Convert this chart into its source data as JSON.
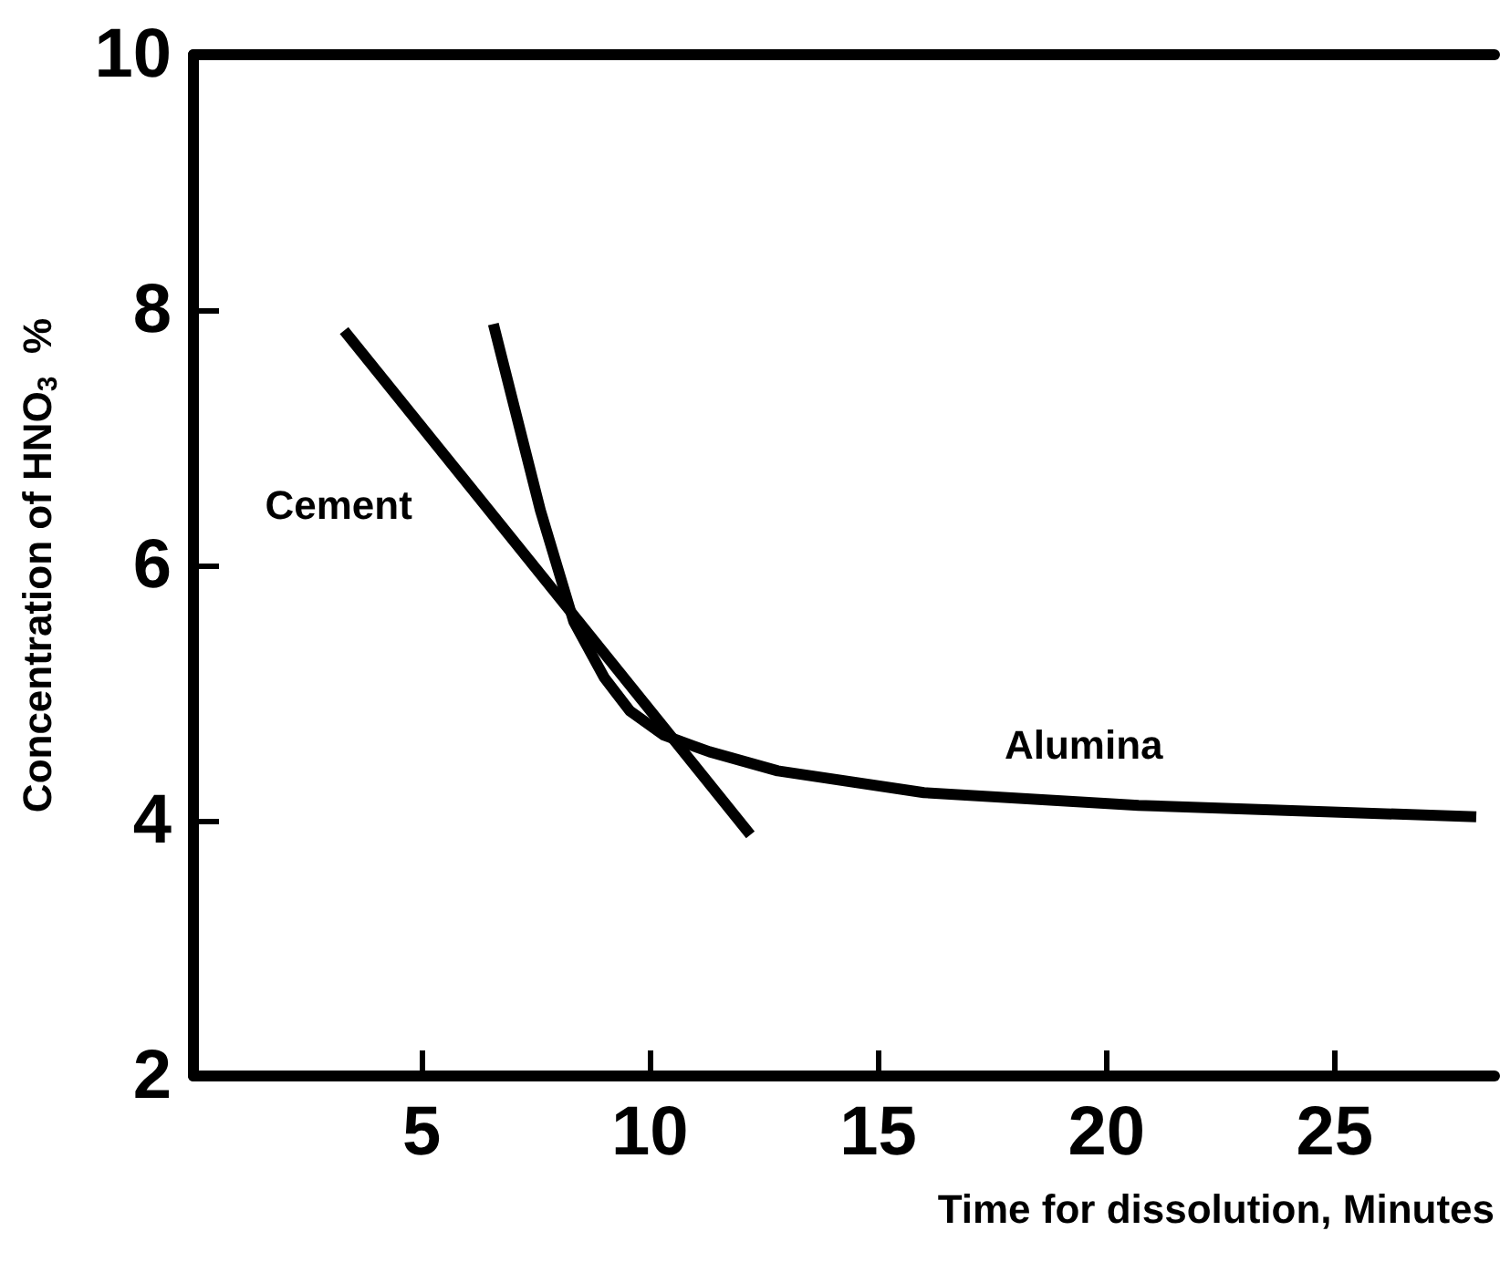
{
  "chart_data": {
    "type": "line",
    "xlabel": "Time for dissolution, Minutes",
    "ylabel": "Concentration of HNO$_{3}$  %",
    "xlim": [
      0,
      28.5
    ],
    "ylim": [
      2,
      10
    ],
    "xticks": [
      5,
      10,
      15,
      20,
      25
    ],
    "yticks": [
      2,
      4,
      6,
      8,
      10
    ],
    "grid": false,
    "legend": false,
    "marker": "none",
    "line_style": "solid",
    "series": [
      {
        "name": "Cement",
        "color": "#000000",
        "x": [
          3.3,
          12.2
        ],
        "values": [
          7.84,
          3.89
        ]
      },
      {
        "name": "Alumina",
        "color": "#000000",
        "x": [
          6.57,
          7.6,
          8.33,
          9.0,
          9.56,
          10.3,
          11.3,
          12.8,
          16.0,
          20.7,
          28.1
        ],
        "values": [
          7.89,
          6.43,
          5.56,
          5.12,
          4.86,
          4.67,
          4.54,
          4.39,
          4.22,
          4.12,
          4.03
        ]
      }
    ]
  }
}
